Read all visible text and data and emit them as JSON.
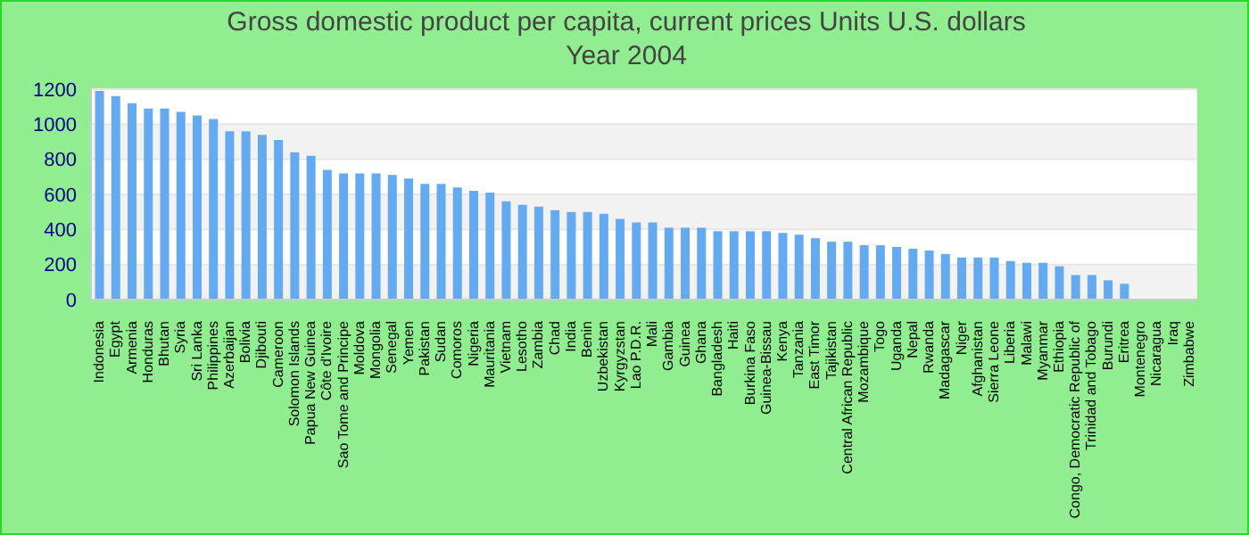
{
  "chart_data": {
    "type": "bar",
    "title": "Gross domestic product per capita, current prices Units U.S. dollars",
    "subtitle": "Year 2004",
    "categories": [
      "Indonesia",
      "Egypt",
      "Armenia",
      "Honduras",
      "Bhutan",
      "Syria",
      "Sri Lanka",
      "Philippines",
      "Azerbaijan",
      "Bolivia",
      "Djibouti",
      "Cameroon",
      "Solomon Islands",
      "Papua New Guinea",
      "Côte d'Ivoire",
      "Sao Tome and Principe",
      "Moldova",
      "Mongolia",
      "Senegal",
      "Yemen",
      "Pakistan",
      "Sudan",
      "Comoros",
      "Nigeria",
      "Mauritania",
      "Vietnam",
      "Lesotho",
      "Zambia",
      "Chad",
      "India",
      "Benin",
      "Uzbekistan",
      "Kyrgyzstan",
      "Lao P.D.R.",
      "Mali",
      "Gambia",
      "Guinea",
      "Ghana",
      "Bangladesh",
      "Haiti",
      "Burkina Faso",
      "Guinea-Bissau",
      "Kenya",
      "Tanzania",
      "East Timor",
      "Tajikistan",
      "Central African Republic",
      "Mozambique",
      "Togo",
      "Uganda",
      "Nepal",
      "Rwanda",
      "Madagascar",
      "Niger",
      "Afghanistan",
      "Sierra Leone",
      "Liberia",
      "Malawi",
      "Myanmar",
      "Ethiopia",
      "Congo, Democratic Republic of",
      "Trinidad and Tobago",
      "Burundi",
      "Eritrea",
      "Montenegro",
      "Nicaragua",
      "Iraq",
      "Zimbabwe"
    ],
    "values": [
      1190,
      1160,
      1120,
      1090,
      1090,
      1070,
      1050,
      1030,
      960,
      960,
      940,
      910,
      840,
      820,
      740,
      720,
      720,
      720,
      710,
      690,
      660,
      660,
      640,
      620,
      610,
      560,
      540,
      530,
      510,
      500,
      500,
      490,
      460,
      440,
      440,
      410,
      410,
      410,
      390,
      390,
      390,
      390,
      380,
      370,
      350,
      330,
      330,
      310,
      310,
      300,
      290,
      280,
      260,
      240,
      240,
      240,
      220,
      210,
      210,
      190,
      140,
      140,
      110,
      90,
      null,
      null,
      null,
      null
    ],
    "color": "#63aaf0",
    "ylim": [
      0,
      1200
    ],
    "yticks": [
      0,
      200,
      400,
      600,
      800,
      1000,
      1200
    ],
    "grid": "y"
  }
}
